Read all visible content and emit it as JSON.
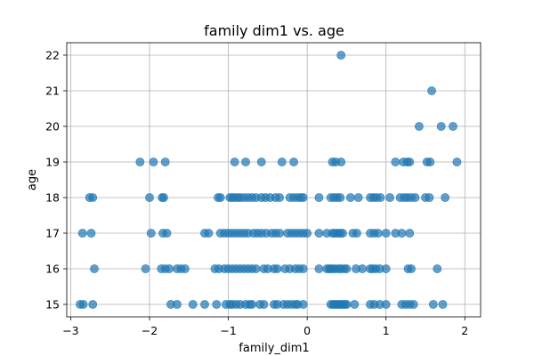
{
  "chart_data": {
    "type": "scatter",
    "title": "family dim1 vs. age",
    "xlabel": "family_dim1",
    "ylabel": "age",
    "xlim": [
      -3.05,
      2.2
    ],
    "ylim": [
      14.65,
      22.35
    ],
    "xticks": [
      -3,
      -2,
      -1,
      0,
      1,
      2
    ],
    "yticks": [
      15,
      16,
      17,
      18,
      19,
      20,
      21,
      22
    ],
    "grid": true,
    "marker_color": "#1f77b4",
    "marker_alpha": 0.7,
    "points": [
      [
        -2.88,
        15
      ],
      [
        -2.84,
        15
      ],
      [
        -2.72,
        15
      ],
      [
        -1.73,
        15
      ],
      [
        -1.65,
        15
      ],
      [
        -1.45,
        15
      ],
      [
        -1.3,
        15
      ],
      [
        -1.15,
        15
      ],
      [
        -1.03,
        15
      ],
      [
        -0.98,
        15
      ],
      [
        -0.95,
        15
      ],
      [
        -0.9,
        15
      ],
      [
        -0.85,
        15
      ],
      [
        -0.78,
        15
      ],
      [
        -0.73,
        15
      ],
      [
        -0.7,
        15
      ],
      [
        -0.6,
        15
      ],
      [
        -0.55,
        15
      ],
      [
        -0.42,
        15
      ],
      [
        -0.38,
        15
      ],
      [
        -0.3,
        15
      ],
      [
        -0.25,
        15
      ],
      [
        -0.2,
        15
      ],
      [
        -0.15,
        15
      ],
      [
        -0.12,
        15
      ],
      [
        -0.05,
        15
      ],
      [
        0.3,
        15
      ],
      [
        0.33,
        15
      ],
      [
        0.35,
        15
      ],
      [
        0.38,
        15
      ],
      [
        0.4,
        15
      ],
      [
        0.43,
        15
      ],
      [
        0.45,
        15
      ],
      [
        0.48,
        15
      ],
      [
        0.5,
        15
      ],
      [
        0.6,
        15
      ],
      [
        0.8,
        15
      ],
      [
        0.85,
        15
      ],
      [
        0.92,
        15
      ],
      [
        1.0,
        15
      ],
      [
        1.2,
        15
      ],
      [
        1.25,
        15
      ],
      [
        1.3,
        15
      ],
      [
        1.35,
        15
      ],
      [
        1.6,
        15
      ],
      [
        1.72,
        15
      ],
      [
        -2.7,
        16
      ],
      [
        -2.05,
        16
      ],
      [
        -1.85,
        16
      ],
      [
        -1.8,
        16
      ],
      [
        -1.75,
        16
      ],
      [
        -1.65,
        16
      ],
      [
        -1.6,
        16
      ],
      [
        -1.55,
        16
      ],
      [
        -1.17,
        16
      ],
      [
        -1.12,
        16
      ],
      [
        -1.05,
        16
      ],
      [
        -1.0,
        16
      ],
      [
        -0.95,
        16
      ],
      [
        -0.9,
        16
      ],
      [
        -0.85,
        16
      ],
      [
        -0.8,
        16
      ],
      [
        -0.75,
        16
      ],
      [
        -0.7,
        16
      ],
      [
        -0.65,
        16
      ],
      [
        -0.55,
        16
      ],
      [
        -0.5,
        16
      ],
      [
        -0.42,
        16
      ],
      [
        -0.38,
        16
      ],
      [
        -0.28,
        16
      ],
      [
        -0.22,
        16
      ],
      [
        -0.15,
        16
      ],
      [
        -0.1,
        16
      ],
      [
        -0.05,
        16
      ],
      [
        0.15,
        16
      ],
      [
        0.25,
        16
      ],
      [
        0.28,
        16
      ],
      [
        0.3,
        16
      ],
      [
        0.33,
        16
      ],
      [
        0.36,
        16
      ],
      [
        0.4,
        16
      ],
      [
        0.43,
        16
      ],
      [
        0.47,
        16
      ],
      [
        0.5,
        16
      ],
      [
        0.62,
        16
      ],
      [
        0.7,
        16
      ],
      [
        0.8,
        16
      ],
      [
        0.83,
        16
      ],
      [
        0.87,
        16
      ],
      [
        0.92,
        16
      ],
      [
        1.0,
        16
      ],
      [
        1.28,
        16
      ],
      [
        1.32,
        16
      ],
      [
        1.65,
        16
      ],
      [
        -2.85,
        17
      ],
      [
        -2.74,
        17
      ],
      [
        -1.98,
        17
      ],
      [
        -1.83,
        17
      ],
      [
        -1.78,
        17
      ],
      [
        -1.3,
        17
      ],
      [
        -1.25,
        17
      ],
      [
        -1.1,
        17
      ],
      [
        -1.05,
        17
      ],
      [
        -1.0,
        17
      ],
      [
        -0.95,
        17
      ],
      [
        -0.9,
        17
      ],
      [
        -0.85,
        17
      ],
      [
        -0.8,
        17
      ],
      [
        -0.75,
        17
      ],
      [
        -0.68,
        17
      ],
      [
        -0.63,
        17
      ],
      [
        -0.58,
        17
      ],
      [
        -0.52,
        17
      ],
      [
        -0.45,
        17
      ],
      [
        -0.4,
        17
      ],
      [
        -0.35,
        17
      ],
      [
        -0.25,
        17
      ],
      [
        -0.2,
        17
      ],
      [
        -0.15,
        17
      ],
      [
        -0.1,
        17
      ],
      [
        -0.05,
        17
      ],
      [
        0.0,
        17
      ],
      [
        0.15,
        17
      ],
      [
        0.25,
        17
      ],
      [
        0.32,
        17
      ],
      [
        0.35,
        17
      ],
      [
        0.38,
        17
      ],
      [
        0.42,
        17
      ],
      [
        0.45,
        17
      ],
      [
        0.58,
        17
      ],
      [
        0.63,
        17
      ],
      [
        0.8,
        17
      ],
      [
        0.85,
        17
      ],
      [
        0.9,
        17
      ],
      [
        1.0,
        17
      ],
      [
        1.12,
        17
      ],
      [
        1.2,
        17
      ],
      [
        1.3,
        17
      ],
      [
        -2.76,
        18
      ],
      [
        -2.72,
        18
      ],
      [
        -2.0,
        18
      ],
      [
        -1.84,
        18
      ],
      [
        -1.82,
        18
      ],
      [
        -1.13,
        18
      ],
      [
        -1.1,
        18
      ],
      [
        -0.98,
        18
      ],
      [
        -0.95,
        18
      ],
      [
        -0.92,
        18
      ],
      [
        -0.88,
        18
      ],
      [
        -0.85,
        18
      ],
      [
        -0.8,
        18
      ],
      [
        -0.75,
        18
      ],
      [
        -0.7,
        18
      ],
      [
        -0.65,
        18
      ],
      [
        -0.58,
        18
      ],
      [
        -0.53,
        18
      ],
      [
        -0.47,
        18
      ],
      [
        -0.4,
        18
      ],
      [
        -0.35,
        18
      ],
      [
        -0.22,
        18
      ],
      [
        -0.17,
        18
      ],
      [
        -0.12,
        18
      ],
      [
        -0.08,
        18
      ],
      [
        -0.05,
        18
      ],
      [
        0.15,
        18
      ],
      [
        0.3,
        18
      ],
      [
        0.34,
        18
      ],
      [
        0.38,
        18
      ],
      [
        0.42,
        18
      ],
      [
        0.55,
        18
      ],
      [
        0.65,
        18
      ],
      [
        0.8,
        18
      ],
      [
        0.84,
        18
      ],
      [
        0.88,
        18
      ],
      [
        0.93,
        18
      ],
      [
        1.05,
        18
      ],
      [
        1.18,
        18
      ],
      [
        1.23,
        18
      ],
      [
        1.27,
        18
      ],
      [
        1.32,
        18
      ],
      [
        1.37,
        18
      ],
      [
        1.5,
        18
      ],
      [
        1.55,
        18
      ],
      [
        1.75,
        18
      ],
      [
        -2.12,
        19
      ],
      [
        -1.95,
        19
      ],
      [
        -1.8,
        19
      ],
      [
        -0.92,
        19
      ],
      [
        -0.78,
        19
      ],
      [
        -0.58,
        19
      ],
      [
        -0.32,
        19
      ],
      [
        -0.17,
        19
      ],
      [
        0.32,
        19
      ],
      [
        0.36,
        19
      ],
      [
        0.43,
        19
      ],
      [
        1.12,
        19
      ],
      [
        1.22,
        19
      ],
      [
        1.27,
        19
      ],
      [
        1.3,
        19
      ],
      [
        1.52,
        19
      ],
      [
        1.56,
        19
      ],
      [
        1.9,
        19
      ],
      [
        1.42,
        20
      ],
      [
        1.7,
        20
      ],
      [
        1.85,
        20
      ],
      [
        1.58,
        21
      ],
      [
        0.43,
        22
      ]
    ]
  }
}
